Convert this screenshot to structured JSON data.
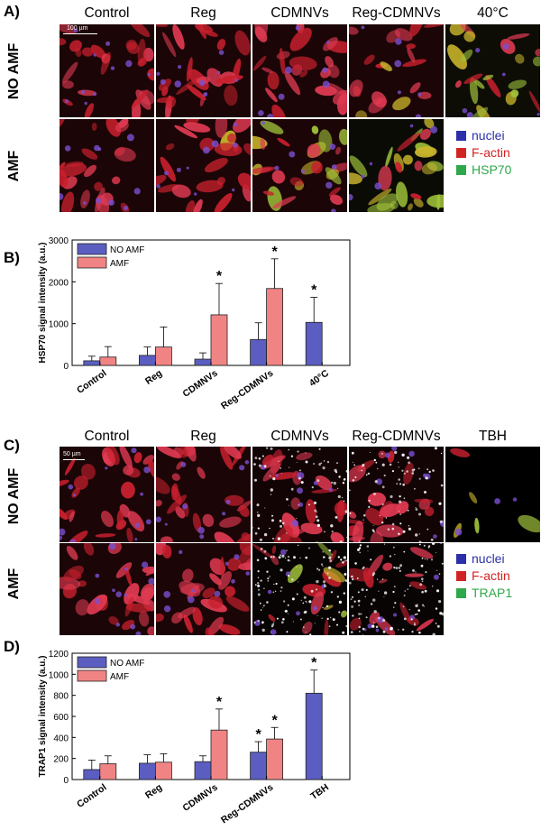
{
  "panel_a": {
    "letter": "A)",
    "columns": [
      "Control",
      "Reg",
      "CDMNVs",
      "Reg-CDMNVs",
      "40°C"
    ],
    "rows": [
      "NO AMF",
      "AMF"
    ],
    "scalebar": "100 µm",
    "legend": [
      {
        "label": "nuclei",
        "color": "#2b2fa8"
      },
      {
        "label": "F-actin",
        "color": "#d22323"
      },
      {
        "label": "HSP70",
        "color": "#2ea84a"
      }
    ]
  },
  "panel_b": {
    "letter": "B)"
  },
  "panel_c": {
    "letter": "C)",
    "columns": [
      "Control",
      "Reg",
      "CDMNVs",
      "Reg-CDMNVs",
      "TBH"
    ],
    "rows": [
      "NO AMF",
      "AMF"
    ],
    "scalebar": "50 µm",
    "legend": [
      {
        "label": "nuclei",
        "color": "#2b2fa8"
      },
      {
        "label": "F-actin",
        "color": "#d22323"
      },
      {
        "label": "TRAP1",
        "color": "#2ea84a"
      }
    ]
  },
  "panel_d": {
    "letter": "D)"
  },
  "colors": {
    "no_amf": "#5b5ec0",
    "amf": "#f08484"
  },
  "chart_data": [
    {
      "type": "bar",
      "title": "",
      "xlabel": "",
      "ylabel": "HSP70 signal intensity (a.u.)",
      "ylim": [
        0,
        3000
      ],
      "yticks": [
        "0",
        "1000",
        "2000",
        "3000"
      ],
      "categories": [
        "Control",
        "Reg",
        "CDMNVs",
        "Reg-CDMNVs",
        "40°C"
      ],
      "legend_position": "top-left",
      "significance_mark": "*",
      "series": [
        {
          "name": "NO AMF",
          "values": [
            110,
            240,
            150,
            620,
            1030
          ],
          "errors": [
            110,
            200,
            150,
            400,
            600
          ],
          "significant": [
            false,
            false,
            false,
            false,
            true
          ]
        },
        {
          "name": "AMF",
          "values": [
            200,
            440,
            1210,
            1840,
            null
          ],
          "errors": [
            250,
            480,
            750,
            710,
            null
          ],
          "significant": [
            false,
            false,
            true,
            true,
            false
          ]
        }
      ]
    },
    {
      "type": "bar",
      "title": "",
      "xlabel": "",
      "ylabel": "TRAP1 signal intensity (a.u.)",
      "ylim": [
        0,
        1200
      ],
      "yticks": [
        "0",
        "200",
        "400",
        "600",
        "800",
        "1000",
        "1200"
      ],
      "categories": [
        "Control",
        "Reg",
        "CDMNVs",
        "Reg-CDMNVs",
        "TBH"
      ],
      "legend_position": "top-left",
      "significance_mark": "*",
      "series": [
        {
          "name": "NO AMF",
          "values": [
            95,
            155,
            170,
            260,
            820
          ],
          "errors": [
            90,
            80,
            55,
            100,
            220
          ],
          "significant": [
            false,
            false,
            false,
            true,
            true
          ]
        },
        {
          "name": "AMF",
          "values": [
            150,
            165,
            470,
            385,
            null
          ],
          "errors": [
            75,
            80,
            200,
            110,
            null
          ],
          "significant": [
            false,
            false,
            true,
            true,
            false
          ]
        }
      ]
    }
  ]
}
